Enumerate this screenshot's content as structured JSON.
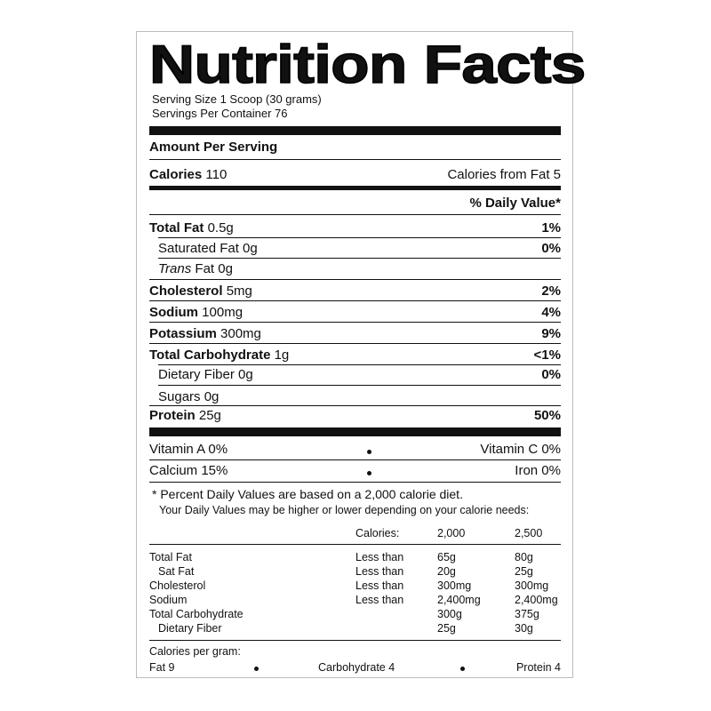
{
  "title": "Nutrition Facts",
  "serving_size": "Serving Size 1 Scoop (30 grams)",
  "servings_per_container": "Servings Per Container 76",
  "amount_per_serving": "Amount Per Serving",
  "calories": {
    "label": "Calories",
    "value": "110"
  },
  "calories_from_fat": "Calories from Fat 5",
  "daily_value_header": "% Daily Value*",
  "nutrients": [
    {
      "name": "Total Fat",
      "amount": "0.5g",
      "dv": "1%"
    },
    {
      "name": "Saturated Fat 0g",
      "dv": "0%"
    },
    {
      "name_italic": "Trans",
      "name_rest": "Fat 0g"
    },
    {
      "name": "Cholesterol",
      "amount": "5mg",
      "dv": "2%"
    },
    {
      "name": "Sodium",
      "amount": "100mg",
      "dv": "4%"
    },
    {
      "name": "Potassium",
      "amount": "300mg",
      "dv": "9%"
    },
    {
      "name": "Total Carbohydrate",
      "amount": "1g",
      "dv": "<1%"
    },
    {
      "name": "Dietary Fiber 0g",
      "dv": "0%"
    },
    {
      "name": "Sugars 0g"
    },
    {
      "name": "Protein",
      "amount": "25g",
      "dv": "50%"
    }
  ],
  "vitamins": [
    {
      "left": "Vitamin A 0%",
      "right": "Vitamin C 0%"
    },
    {
      "left": "Calcium 15%",
      "right": "Iron 0%"
    }
  ],
  "footnote_1": "* Percent Daily Values are based on a 2,000 calorie diet.",
  "footnote_2": "Your Daily Values may be higher or lower depending on your calorie needs:",
  "dv_table": {
    "header": {
      "label": "Calories:",
      "c1": "2,000",
      "c2": "2,500"
    },
    "rows": [
      {
        "name": "Total Fat",
        "q": "Less than",
        "c1": "65g",
        "c2": "80g"
      },
      {
        "name": "Sat Fat",
        "q": "Less than",
        "c1": "20g",
        "c2": "25g"
      },
      {
        "name": "Cholesterol",
        "q": "Less than",
        "c1": "300mg",
        "c2": "300mg"
      },
      {
        "name": "Sodium",
        "q": "Less than",
        "c1": "2,400mg",
        "c2": "2,400mg"
      },
      {
        "name": "Total Carbohydrate",
        "q": "",
        "c1": "300g",
        "c2": "375g"
      },
      {
        "name": "Dietary Fiber",
        "q": "",
        "c1": "25g",
        "c2": "30g"
      }
    ]
  },
  "calories_per_gram": {
    "label": "Calories per gram:",
    "fat": "Fat 9",
    "carbohydrate": "Carbohydrate 4",
    "protein": "Protein 4"
  }
}
